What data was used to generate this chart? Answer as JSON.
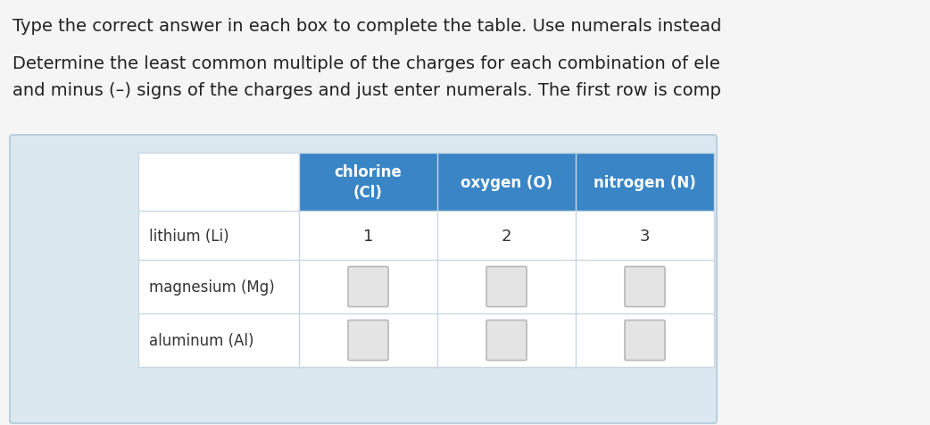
{
  "title_line1": "Type the correct answer in each box to complete the table. Use numerals instead",
  "title_line2": "Determine the least common multiple of the charges for each combination of ele",
  "title_line3": "and minus (–) signs of the charges and just enter numerals. The first row is comp",
  "col_headers": [
    "chlorine\n(Cl)",
    "oxygen (O)",
    "nitrogen (N)"
  ],
  "row_headers": [
    "lithium (Li)",
    "magnesium (Mg)",
    "aluminum (Al)"
  ],
  "completed_row": [
    "1",
    "2",
    "3"
  ],
  "header_bg": "#3a85c6",
  "header_text": "#ffffff",
  "table_bg": "#ffffff",
  "outer_bg": "#dce8f0",
  "outer_border": "#b8cfe0",
  "cell_border": "#c8d8e4",
  "row_sep": "#c8d8e4",
  "text_color": "#333333",
  "title_color": "#222222",
  "input_box_fill": "#e4e4e4",
  "input_box_border": "#b8b8b8",
  "fig_bg": "#f5f5f5"
}
